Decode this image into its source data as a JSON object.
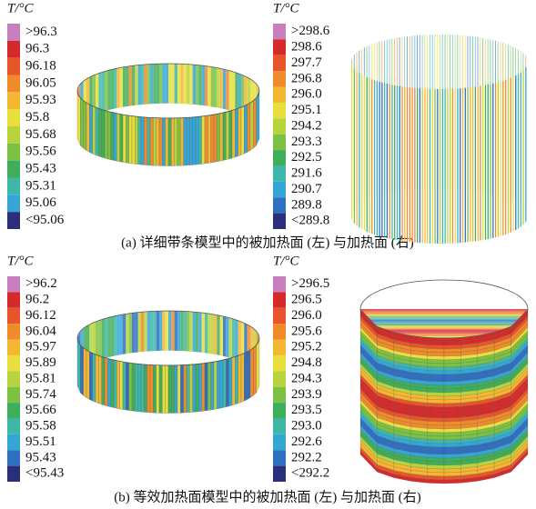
{
  "figure": {
    "panels": [
      {
        "unit": "T/°C",
        "style": "vertical-ring",
        "labels": [
          ">96.3",
          "96.3",
          "96.18",
          "96.05",
          "95.93",
          "95.8",
          "95.68",
          "95.56",
          "95.43",
          "95.31",
          "95.06",
          "<95.06"
        ],
        "colors": [
          "#c77fc0",
          "#d62a2a",
          "#e8552a",
          "#f08a2a",
          "#f3b732",
          "#e8de3c",
          "#b8d43c",
          "#7cc142",
          "#3fae5a",
          "#3fb7a8",
          "#34a6d6",
          "#2b2f7a"
        ]
      },
      {
        "unit": "T/°C",
        "style": "sparse-bars",
        "labels": [
          ">298.6",
          "298.6",
          "297.7",
          "296.8",
          "296.0",
          "295.1",
          "294.2",
          "293.3",
          "292.5",
          "291.6",
          "290.7",
          "289.8",
          "<289.8"
        ],
        "colors": [
          "#c77fc0",
          "#d62a2a",
          "#e8552a",
          "#f08a2a",
          "#f3b732",
          "#e8de3c",
          "#b8d43c",
          "#7cc142",
          "#3fae5a",
          "#3fb7a8",
          "#34a6d6",
          "#2f6fc0",
          "#2b2f7a"
        ]
      },
      {
        "unit": "T/°C",
        "style": "vertical-ring",
        "labels": [
          ">96.2",
          "96.2",
          "96.12",
          "96.04",
          "95.97",
          "95.89",
          "95.81",
          "95.74",
          "95.66",
          "95.58",
          "95.51",
          "95.43",
          "<95.43"
        ],
        "colors": [
          "#c77fc0",
          "#d62a2a",
          "#e8552a",
          "#f08a2a",
          "#f3b732",
          "#e8de3c",
          "#b8d43c",
          "#7cc142",
          "#3fae5a",
          "#3fb7a8",
          "#34a6d6",
          "#2f6fc0",
          "#2b2f7a"
        ]
      },
      {
        "unit": "T/°C",
        "style": "horizontal-bands",
        "labels": [
          ">296.5",
          "296.5",
          "296.0",
          "295.6",
          "295.2",
          "294.8",
          "294.3",
          "293.9",
          "293.5",
          "293.0",
          "292.6",
          "292.2",
          "<292.2"
        ],
        "colors": [
          "#c77fc0",
          "#d62a2a",
          "#e8552a",
          "#f08a2a",
          "#f3b732",
          "#e8de3c",
          "#b8d43c",
          "#7cc142",
          "#3fae5a",
          "#3fb7a8",
          "#34a6d6",
          "#2f6fc0",
          "#2b2f7a"
        ]
      }
    ],
    "captions": [
      "(a) 详细带条模型中的被加热面 (左) 与加热面 (右)",
      "(b) 等效加热面模型中的被加热面 (左) 与加热面 (右)"
    ]
  }
}
